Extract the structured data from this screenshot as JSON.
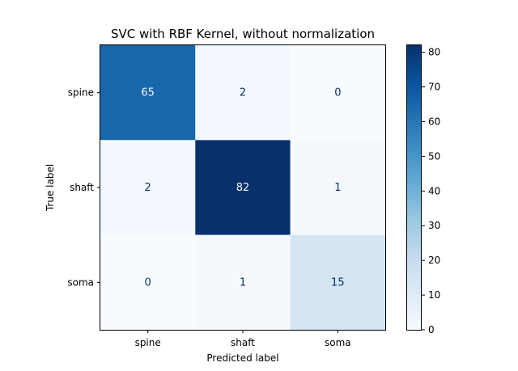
{
  "chart_data": {
    "type": "heatmap",
    "title": "SVC with RBF Kernel, without normalization",
    "xlabel": "Predicted label",
    "ylabel": "True label",
    "x_categories": [
      "spine",
      "shaft",
      "soma"
    ],
    "y_categories": [
      "spine",
      "shaft",
      "soma"
    ],
    "values": [
      [
        65,
        2,
        0
      ],
      [
        2,
        82,
        1
      ],
      [
        0,
        1,
        15
      ]
    ],
    "colormap": "Blues",
    "colorbar": {
      "range": [
        0,
        82
      ],
      "ticks": [
        0,
        10,
        20,
        30,
        40,
        50,
        60,
        70,
        80
      ]
    },
    "colors": {
      "low": "#f7fbff",
      "high": "#08306b",
      "text_on_light": "#08306b",
      "text_on_dark": "#f7fbff"
    },
    "grid": false
  }
}
